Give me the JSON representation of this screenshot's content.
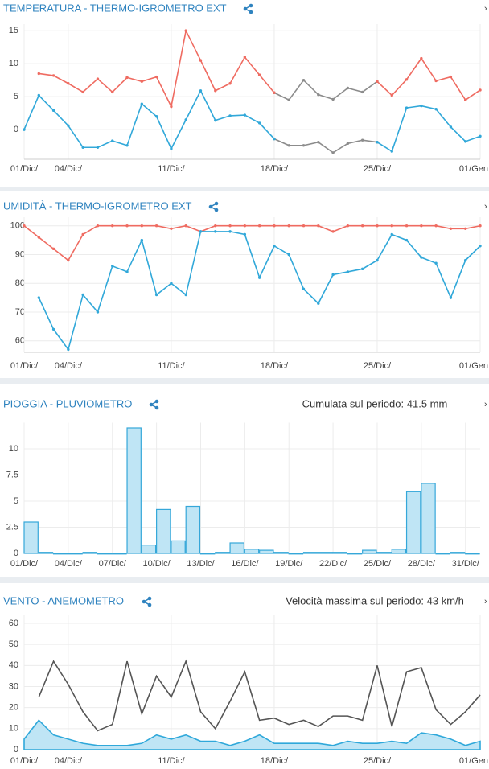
{
  "chart_data": [
    {
      "type": "line",
      "title": "TEMPERATURA -  THERMO-IGROMETRO EXT",
      "markers": true,
      "grid": true,
      "x": [
        1,
        2,
        3,
        4,
        5,
        6,
        7,
        8,
        9,
        10,
        11,
        12,
        13,
        14,
        15,
        16,
        17,
        18,
        19,
        20,
        21,
        22,
        23,
        24,
        25,
        26,
        27,
        28,
        29,
        30,
        31,
        32
      ],
      "xlim": [
        1,
        32
      ],
      "xticks": [
        {
          "value": 1,
          "label": "01/Dic/"
        },
        {
          "value": 4,
          "label": "04/Dic/"
        },
        {
          "value": 11,
          "label": "11/Dic/"
        },
        {
          "value": 18,
          "label": "18/Dic/"
        },
        {
          "value": 25,
          "label": "25/Dic/"
        },
        {
          "value": 32,
          "label": "01/Gen"
        }
      ],
      "ylim": [
        -4.5,
        16
      ],
      "yticks": [
        0,
        5,
        10,
        15
      ],
      "series": [
        {
          "color": "#8c8c8c",
          "values": [
            null,
            null,
            null,
            null,
            null,
            null,
            null,
            null,
            null,
            null,
            null,
            null,
            null,
            null,
            null,
            null,
            null,
            5.6,
            4.5,
            7.5,
            5.3,
            4.6,
            6.3,
            5.7,
            7.3,
            null,
            null,
            null,
            null,
            null,
            null,
            null
          ]
        },
        {
          "color": "#8c8c8c",
          "values": [
            null,
            null,
            null,
            null,
            null,
            null,
            null,
            null,
            null,
            null,
            null,
            null,
            null,
            null,
            null,
            null,
            null,
            -1.4,
            -2.4,
            -2.4,
            -1.9,
            -3.5,
            -2.1,
            -1.6,
            -1.9,
            null,
            null,
            null,
            null,
            null,
            null,
            null
          ]
        },
        {
          "color": "#ef6b61",
          "values": [
            null,
            8.5,
            8.2,
            7.0,
            5.7,
            7.7,
            5.7,
            7.9,
            7.3,
            8.0,
            3.5,
            15,
            10.5,
            5.9,
            7.0,
            11,
            8.3,
            5.6,
            null,
            null,
            null,
            null,
            null,
            null,
            7.3,
            5.2,
            7.6,
            10.8,
            7.4,
            8.0,
            4.5,
            6.0
          ]
        },
        {
          "color": "#31a8d9",
          "values": [
            0,
            5.2,
            2.9,
            0.6,
            -2.7,
            -2.7,
            -1.7,
            -2.4,
            3.9,
            2,
            -2.9,
            1.5,
            5.9,
            1.4,
            2.1,
            2.2,
            1.0,
            -1.4,
            null,
            null,
            null,
            null,
            null,
            null,
            -1.9,
            -3.3,
            3.3,
            3.6,
            3.1,
            0.4,
            -1.8,
            -1.0
          ]
        }
      ]
    },
    {
      "type": "line",
      "title": "UMIDITÀ -  THERMO-IGROMETRO EXT",
      "markers": true,
      "grid": true,
      "x": [
        1,
        2,
        3,
        4,
        5,
        6,
        7,
        8,
        9,
        10,
        11,
        12,
        13,
        14,
        15,
        16,
        17,
        18,
        19,
        20,
        21,
        22,
        23,
        24,
        25,
        26,
        27,
        28,
        29,
        30,
        31,
        32
      ],
      "xlim": [
        1,
        32
      ],
      "xticks": [
        {
          "value": 1,
          "label": "01/Dic/"
        },
        {
          "value": 4,
          "label": "04/Dic/"
        },
        {
          "value": 11,
          "label": "11/Dic/"
        },
        {
          "value": 18,
          "label": "18/Dic/"
        },
        {
          "value": 25,
          "label": "25/Dic/"
        },
        {
          "value": 32,
          "label": "01/Gen"
        }
      ],
      "ylim": [
        56,
        103
      ],
      "yticks": [
        60,
        70,
        80,
        90,
        100
      ],
      "series": [
        {
          "color": "#ef6b61",
          "values": [
            100,
            96,
            92,
            88,
            97,
            100,
            100,
            100,
            100,
            100,
            99,
            100,
            98,
            100,
            100,
            100,
            100,
            100,
            100,
            100,
            100,
            98,
            100,
            100,
            100,
            100,
            100,
            100,
            100,
            99,
            99,
            100
          ]
        },
        {
          "color": "#31a8d9",
          "values": [
            null,
            75,
            64,
            57,
            76,
            70,
            86,
            84,
            95,
            76,
            80,
            76,
            98,
            98,
            98,
            97,
            82,
            93,
            90,
            78,
            73,
            83,
            84,
            85,
            88,
            97,
            95,
            89,
            87,
            75,
            88,
            93
          ]
        }
      ]
    },
    {
      "type": "bar",
      "title": "PIOGGIA -  PLUVIOMETRO",
      "annotation": "Cumulata sul periodo: 41.5 mm",
      "grid": true,
      "x": [
        1,
        2,
        3,
        4,
        5,
        6,
        7,
        8,
        9,
        10,
        11,
        12,
        13,
        14,
        15,
        16,
        17,
        18,
        19,
        20,
        21,
        22,
        23,
        24,
        25,
        26,
        27,
        28,
        29,
        30,
        31
      ],
      "xlim": [
        1,
        32
      ],
      "xticks": [
        {
          "value": 1,
          "label": "01/Dic/"
        },
        {
          "value": 4,
          "label": "04/Dic/"
        },
        {
          "value": 7,
          "label": "07/Dic/"
        },
        {
          "value": 10,
          "label": "10/Dic/"
        },
        {
          "value": 13,
          "label": "13/Dic/"
        },
        {
          "value": 16,
          "label": "16/Dic/"
        },
        {
          "value": 19,
          "label": "19/Dic/"
        },
        {
          "value": 22,
          "label": "22/Dic/"
        },
        {
          "value": 25,
          "label": "25/Dic/"
        },
        {
          "value": 28,
          "label": "28/Dic/"
        },
        {
          "value": 31,
          "label": "31/Dic/"
        }
      ],
      "ylim": [
        0,
        12.5
      ],
      "yticks": [
        0,
        2.5,
        5,
        7.5,
        10
      ],
      "color": "#bfe5f5",
      "edgecolor": "#35a7d9",
      "values": [
        3.0,
        0.1,
        0,
        0,
        0.1,
        0,
        0,
        12,
        0.8,
        4.2,
        1.2,
        4.5,
        0,
        0.1,
        1.0,
        0.4,
        0.3,
        0.1,
        0,
        0.1,
        0.1,
        0.1,
        0,
        0.3,
        0.1,
        0.4,
        5.9,
        6.7,
        0,
        0.1,
        0
      ]
    },
    {
      "type": "line",
      "title": "VENTO -  ANEMOMETRO",
      "annotation": "Velocità massima sul periodo: 43 km/h",
      "grid": true,
      "x": [
        1,
        2,
        3,
        4,
        5,
        6,
        7,
        8,
        9,
        10,
        11,
        12,
        13,
        14,
        15,
        16,
        17,
        18,
        19,
        20,
        21,
        22,
        23,
        24,
        25,
        26,
        27,
        28,
        29,
        30,
        31,
        32
      ],
      "xlim": [
        1,
        32
      ],
      "xticks": [
        {
          "value": 1,
          "label": "01/Dic/"
        },
        {
          "value": 4,
          "label": "04/Dic/"
        },
        {
          "value": 11,
          "label": "11/Dic/"
        },
        {
          "value": 18,
          "label": "18/Dic/"
        },
        {
          "value": 25,
          "label": "25/Dic/"
        },
        {
          "value": 32,
          "label": "01/Gen"
        }
      ],
      "ylim": [
        0,
        64
      ],
      "yticks": [
        0,
        10,
        20,
        30,
        40,
        50,
        60
      ],
      "series": [
        {
          "type": "area",
          "color": "#2fa8da",
          "fill": "#bfe5f5",
          "values": [
            5,
            14,
            7,
            5,
            3,
            2,
            2,
            2,
            3,
            7,
            5,
            7,
            4,
            4,
            2,
            4,
            7,
            3,
            3,
            3,
            3,
            2,
            4,
            3,
            3,
            4,
            3,
            8,
            7,
            5,
            2,
            4
          ]
        },
        {
          "type": "line",
          "color": "#555555",
          "values": [
            null,
            25,
            42,
            31,
            18,
            9,
            12,
            42,
            17,
            35,
            25,
            42,
            18,
            10,
            23,
            37,
            14,
            15,
            12,
            14,
            11,
            16,
            16,
            14,
            40,
            11,
            37,
            39,
            19,
            12,
            18,
            26
          ]
        }
      ]
    }
  ]
}
